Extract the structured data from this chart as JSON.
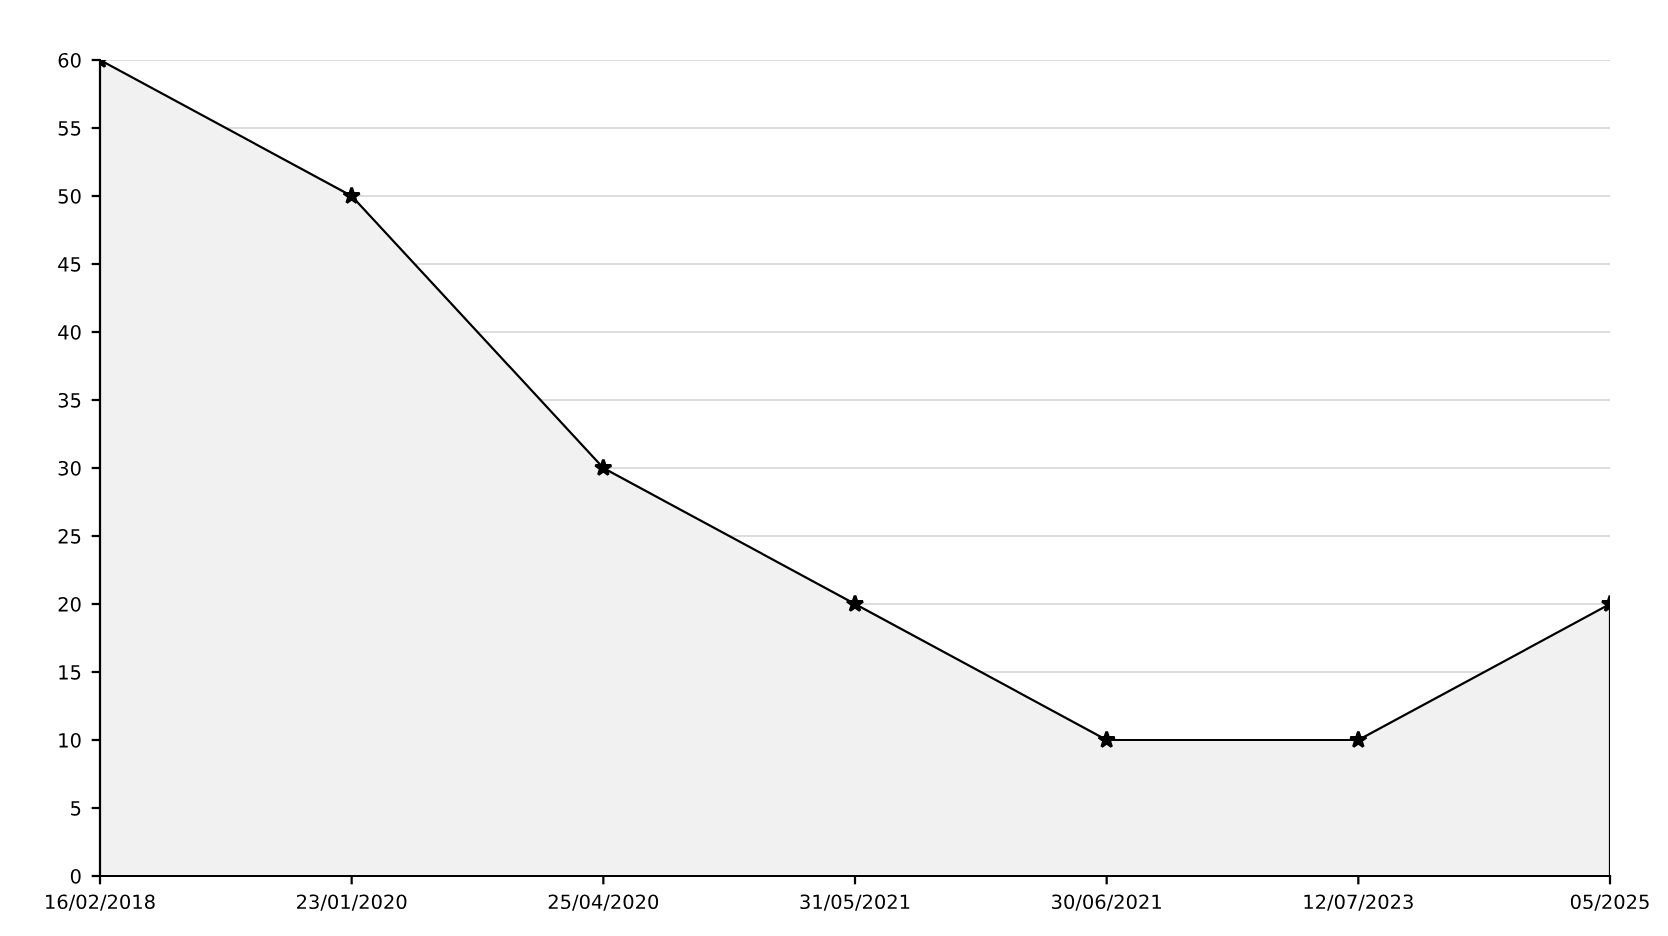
{
  "chart_data": {
    "type": "area",
    "categories": [
      "16/02/2018",
      "23/01/2020",
      "25/04/2020",
      "31/05/2021",
      "30/06/2021",
      "12/07/2023",
      "05/2025"
    ],
    "series": [
      {
        "color": "#000000",
        "values": [
          60,
          50,
          30,
          20,
          10,
          10,
          20
        ]
      }
    ],
    "ylim": [
      0,
      60
    ],
    "yticks": [
      0,
      5,
      10,
      15,
      20,
      25,
      30,
      35,
      40,
      45,
      50,
      55,
      60
    ],
    "grid": "y",
    "marker": "star",
    "line_style": "solid",
    "legend": false
  }
}
